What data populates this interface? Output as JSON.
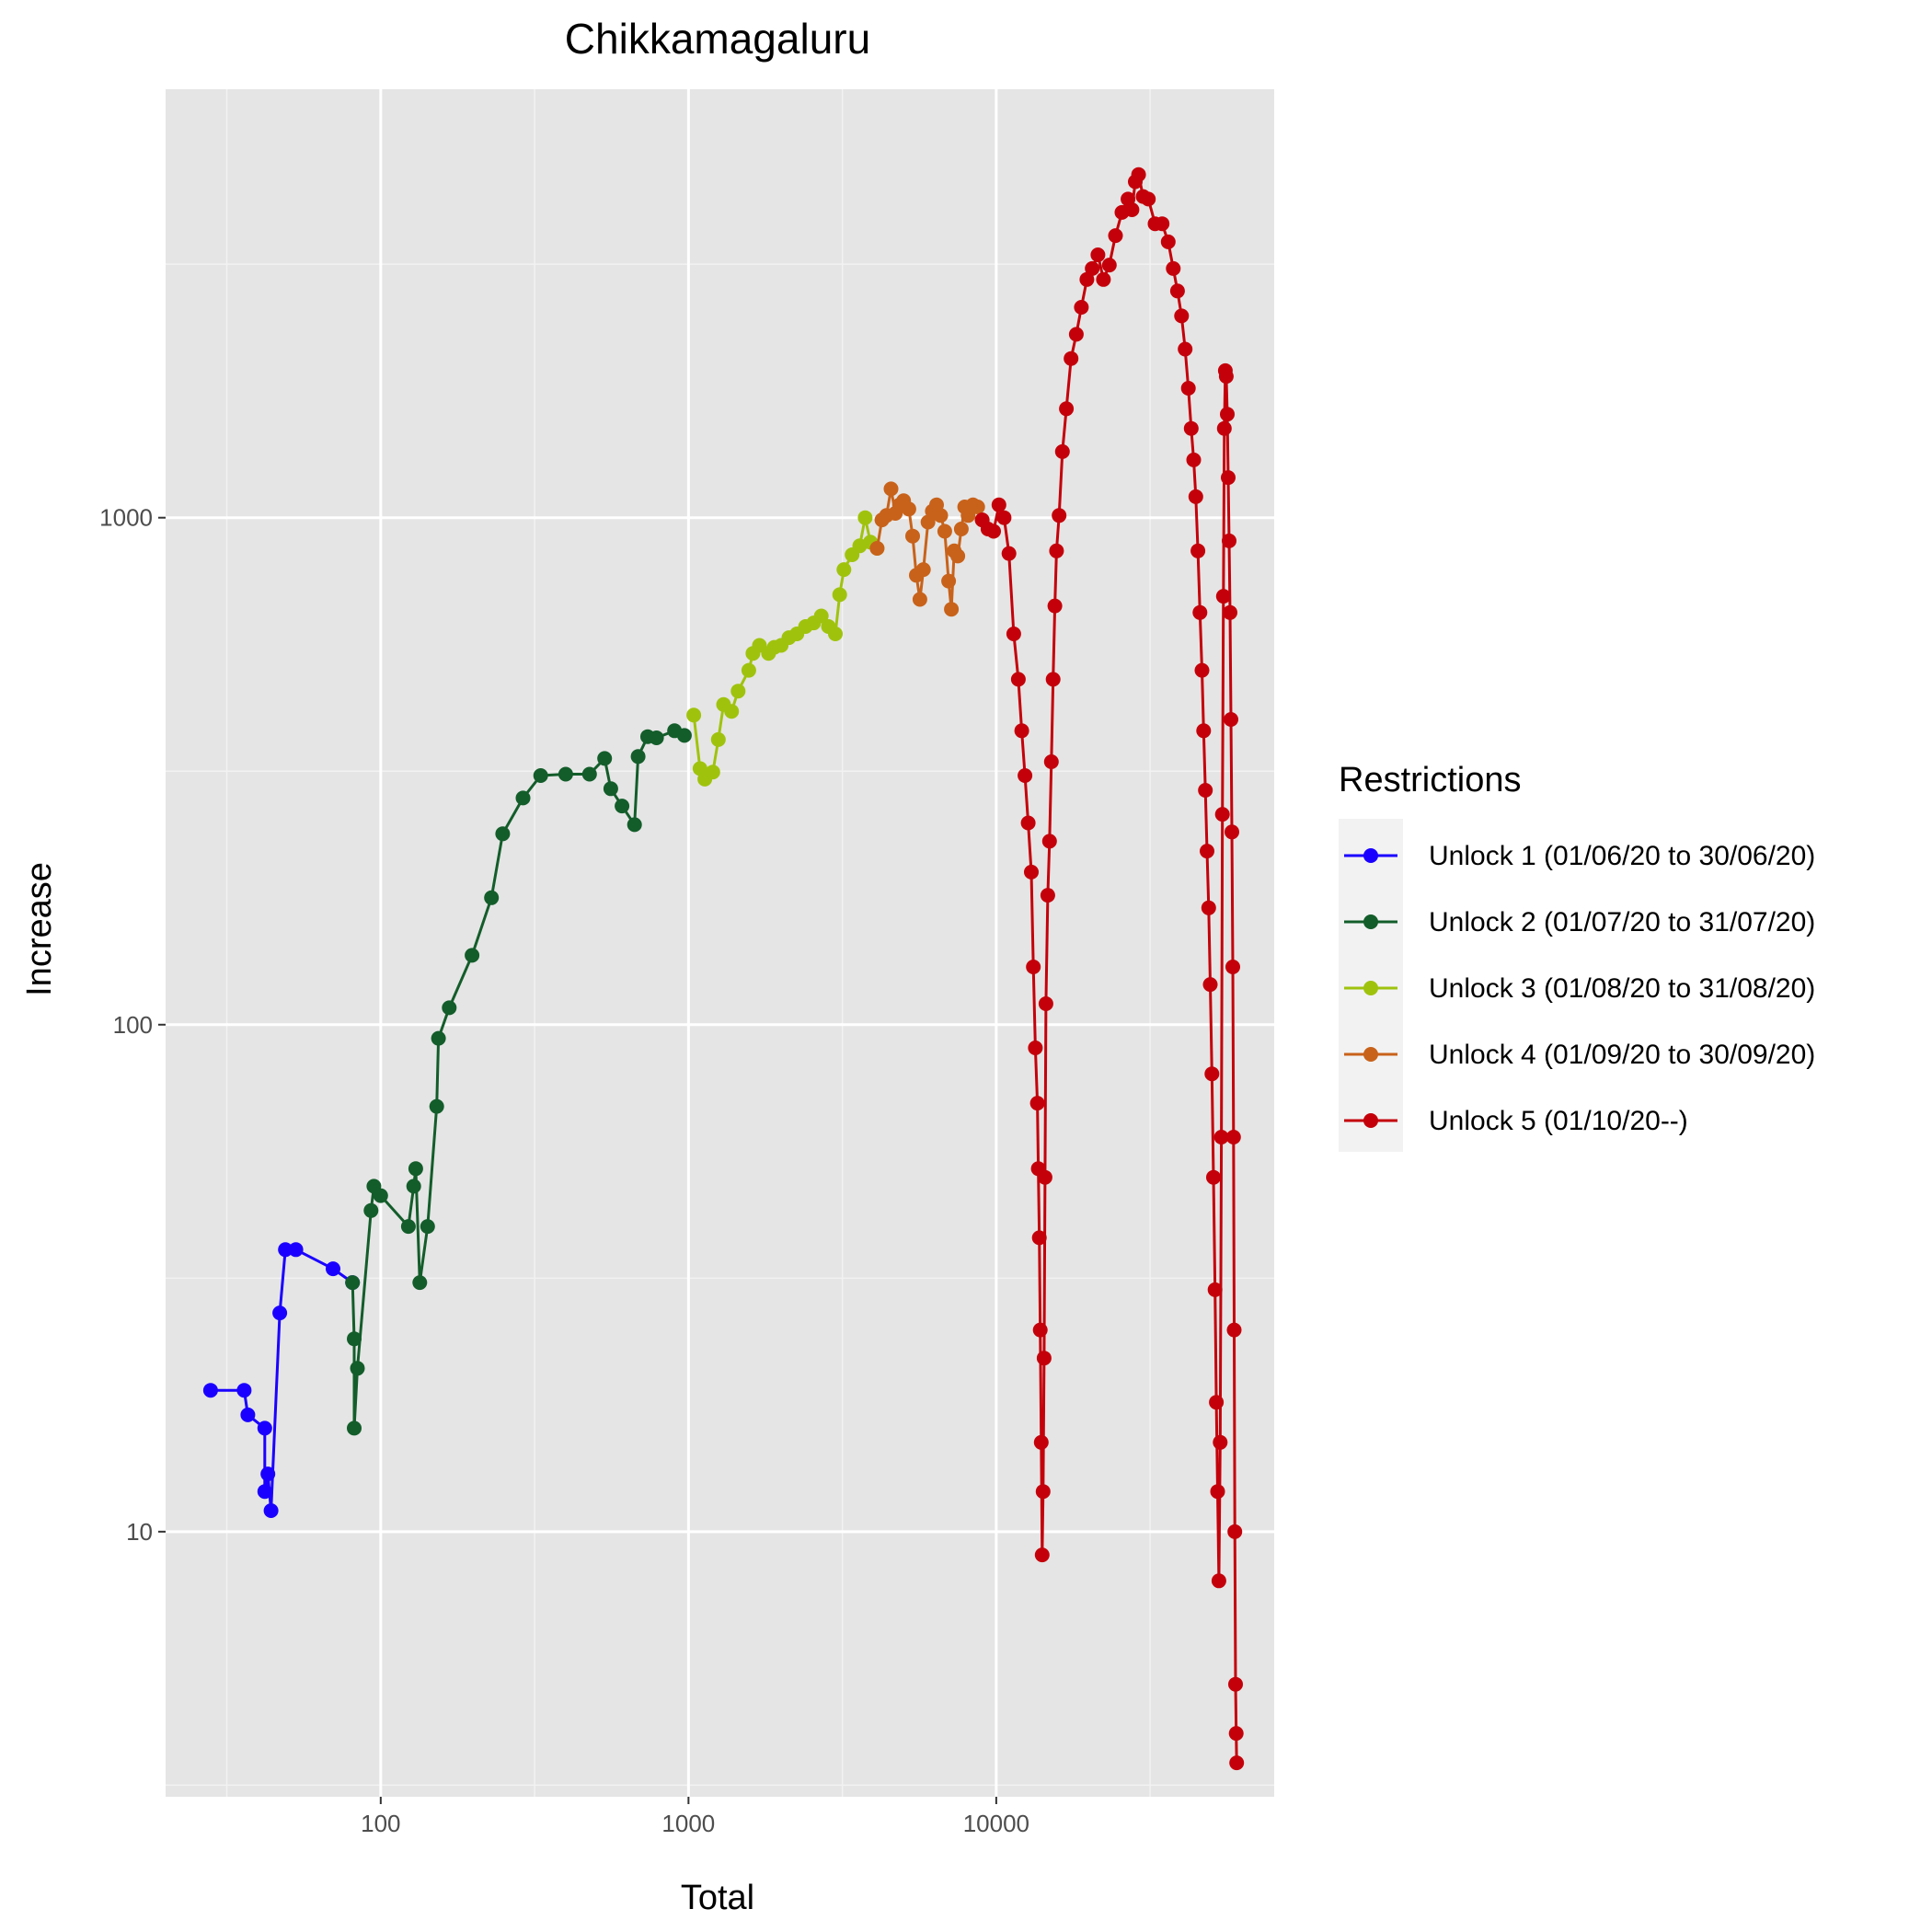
{
  "chart_data": {
    "type": "line",
    "title": "Chikkamagaluru",
    "xlabel": "Total",
    "ylabel": "Increase",
    "x_scale": "log10",
    "y_scale": "log10",
    "xlim": [
      20,
      80000
    ],
    "ylim": [
      3,
      7000
    ],
    "x_ticks": [
      100,
      1000,
      10000
    ],
    "x_tick_labels": [
      "100",
      "1000",
      "10000"
    ],
    "y_ticks": [
      10,
      100,
      1000
    ],
    "y_tick_labels": [
      "10",
      "100",
      "1000"
    ],
    "grid": true,
    "legend": {
      "title": "Restrictions",
      "position": "right"
    },
    "series": [
      {
        "name": "Unlock 1 (01/06/20 to 30/06/20)",
        "color": "#1a00ff",
        "points": [
          [
            28,
            19
          ],
          [
            36,
            19
          ],
          [
            37,
            17
          ],
          [
            42,
            16
          ],
          [
            42,
            12
          ],
          [
            43,
            13
          ],
          [
            44,
            11
          ],
          [
            47,
            27
          ],
          [
            49,
            36
          ],
          [
            53,
            36
          ],
          [
            70,
            33
          ],
          [
            81,
            31
          ]
        ]
      },
      {
        "name": "Unlock 2 (01/07/20 to 31/07/20)",
        "color": "#135d2a",
        "points": [
          [
            81,
            31
          ],
          [
            82,
            24
          ],
          [
            82,
            16
          ],
          [
            84,
            21
          ],
          [
            93,
            43
          ],
          [
            95,
            48
          ],
          [
            100,
            46
          ],
          [
            123,
            40
          ],
          [
            128,
            48
          ],
          [
            130,
            52
          ],
          [
            134,
            31
          ],
          [
            142,
            40
          ],
          [
            152,
            69
          ],
          [
            154,
            94
          ],
          [
            167,
            108
          ],
          [
            198,
            137
          ],
          [
            229,
            178
          ],
          [
            249,
            238
          ],
          [
            290,
            280
          ],
          [
            331,
            310
          ],
          [
            399,
            312
          ],
          [
            477,
            312
          ],
          [
            534,
            335
          ],
          [
            559,
            292
          ],
          [
            608,
            270
          ],
          [
            668,
            248
          ],
          [
            686,
            338
          ],
          [
            737,
            370
          ],
          [
            787,
            368
          ],
          [
            901,
            380
          ],
          [
            970,
            372
          ]
        ]
      },
      {
        "name": "Unlock 3 (01/08/20 to 31/08/20)",
        "color": "#9fc30d",
        "points": [
          [
            1040,
            408
          ],
          [
            1090,
            320
          ],
          [
            1130,
            305
          ],
          [
            1200,
            315
          ],
          [
            1250,
            365
          ],
          [
            1300,
            428
          ],
          [
            1380,
            415
          ],
          [
            1450,
            455
          ],
          [
            1570,
            500
          ],
          [
            1620,
            540
          ],
          [
            1700,
            560
          ],
          [
            1820,
            540
          ],
          [
            1900,
            555
          ],
          [
            2000,
            560
          ],
          [
            2120,
            580
          ],
          [
            2250,
            590
          ],
          [
            2400,
            610
          ],
          [
            2550,
            620
          ],
          [
            2700,
            640
          ],
          [
            2850,
            610
          ],
          [
            3000,
            590
          ],
          [
            3100,
            705
          ],
          [
            3200,
            790
          ],
          [
            3400,
            845
          ],
          [
            3600,
            880
          ],
          [
            3750,
            1000
          ],
          [
            3900,
            895
          ],
          [
            4100,
            870
          ]
        ]
      },
      {
        "name": "Unlock 4 (01/09/20 to 30/09/20)",
        "color": "#c8621a",
        "points": [
          [
            4100,
            870
          ],
          [
            4250,
            990
          ],
          [
            4400,
            1010
          ],
          [
            4550,
            1140
          ],
          [
            4700,
            1020
          ],
          [
            4850,
            1060
          ],
          [
            5000,
            1080
          ],
          [
            5200,
            1040
          ],
          [
            5350,
            920
          ],
          [
            5500,
            770
          ],
          [
            5650,
            690
          ],
          [
            5800,
            790
          ],
          [
            6000,
            980
          ],
          [
            6200,
            1030
          ],
          [
            6400,
            1060
          ],
          [
            6600,
            1010
          ],
          [
            6800,
            940
          ],
          [
            7000,
            750
          ],
          [
            7150,
            660
          ],
          [
            7300,
            860
          ],
          [
            7500,
            840
          ],
          [
            7700,
            950
          ],
          [
            7900,
            1050
          ],
          [
            8100,
            1010
          ],
          [
            8400,
            1060
          ],
          [
            8700,
            1050
          ],
          [
            9000,
            990
          ]
        ]
      },
      {
        "name": "Unlock 5 (01/10/20--)",
        "color": "#c4000a",
        "points": [
          [
            9000,
            990
          ],
          [
            9400,
            950
          ],
          [
            9800,
            940
          ],
          [
            10200,
            1060
          ],
          [
            10600,
            1000
          ],
          [
            11000,
            850
          ],
          [
            11400,
            590
          ],
          [
            11800,
            480
          ],
          [
            12100,
            380
          ],
          [
            12400,
            310
          ],
          [
            12700,
            250
          ],
          [
            13000,
            200
          ],
          [
            13200,
            130
          ],
          [
            13400,
            90
          ],
          [
            13600,
            70
          ],
          [
            13700,
            52
          ],
          [
            13800,
            38
          ],
          [
            13900,
            25
          ],
          [
            14000,
            15
          ],
          [
            14100,
            9
          ],
          [
            14200,
            12
          ],
          [
            14300,
            22
          ],
          [
            14400,
            50
          ],
          [
            14500,
            110
          ],
          [
            14700,
            180
          ],
          [
            14900,
            230
          ],
          [
            15100,
            330
          ],
          [
            15300,
            480
          ],
          [
            15500,
            670
          ],
          [
            15700,
            860
          ],
          [
            16000,
            1010
          ],
          [
            16400,
            1350
          ],
          [
            16900,
            1640
          ],
          [
            17500,
            2060
          ],
          [
            18200,
            2300
          ],
          [
            18900,
            2600
          ],
          [
            19700,
            2950
          ],
          [
            20500,
            3100
          ],
          [
            21400,
            3300
          ],
          [
            22300,
            2950
          ],
          [
            23300,
            3150
          ],
          [
            24400,
            3600
          ],
          [
            25600,
            4000
          ],
          [
            26800,
            4250
          ],
          [
            27600,
            4050
          ],
          [
            28300,
            4600
          ],
          [
            29000,
            4750
          ],
          [
            30000,
            4300
          ],
          [
            31200,
            4250
          ],
          [
            32800,
            3800
          ],
          [
            34600,
            3800
          ],
          [
            36200,
            3500
          ],
          [
            37600,
            3100
          ],
          [
            38800,
            2800
          ],
          [
            40000,
            2500
          ],
          [
            41100,
            2150
          ],
          [
            42100,
            1800
          ],
          [
            43000,
            1500
          ],
          [
            43800,
            1300
          ],
          [
            44500,
            1100
          ],
          [
            45200,
            860
          ],
          [
            45900,
            650
          ],
          [
            46600,
            500
          ],
          [
            47200,
            380
          ],
          [
            47800,
            290
          ],
          [
            48400,
            220
          ],
          [
            49000,
            170
          ],
          [
            49600,
            120
          ],
          [
            50200,
            80
          ],
          [
            50800,
            50
          ],
          [
            51400,
            30
          ],
          [
            51900,
            18
          ],
          [
            52400,
            12
          ],
          [
            52900,
            8
          ],
          [
            53400,
            15
          ],
          [
            53900,
            60
          ],
          [
            54300,
            260
          ],
          [
            54700,
            700
          ],
          [
            55100,
            1500
          ],
          [
            55500,
            1950
          ],
          [
            55900,
            1900
          ],
          [
            56300,
            1600
          ],
          [
            56700,
            1200
          ],
          [
            57100,
            900
          ],
          [
            57500,
            650
          ],
          [
            57900,
            400
          ],
          [
            58300,
            240
          ],
          [
            58700,
            130
          ],
          [
            59000,
            60
          ],
          [
            59300,
            25
          ],
          [
            59600,
            10
          ],
          [
            59900,
            5
          ],
          [
            60200,
            4
          ],
          [
            60400,
            3.5
          ]
        ]
      }
    ]
  }
}
